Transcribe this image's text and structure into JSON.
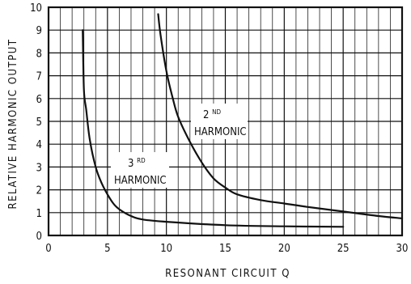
{
  "chart_data": {
    "type": "line",
    "title": "",
    "xlabel": "RESONANT CIRCUIT Q",
    "ylabel": "RELATIVE HARMONIC OUTPUT",
    "xlim": [
      0,
      30
    ],
    "ylim": [
      0,
      10
    ],
    "x_ticks": [
      "0",
      "5",
      "10",
      "15",
      "20",
      "25",
      "30"
    ],
    "y_ticks": [
      "0",
      "1",
      "2",
      "3",
      "4",
      "5",
      "6",
      "7",
      "8",
      "9",
      "10"
    ],
    "grid": true,
    "series": [
      {
        "name": "2ND HARMONIC",
        "label_main": "2",
        "label_sup": "ND",
        "label_sub": "HARMONIC",
        "points": [
          [
            9.3,
            9.7
          ],
          [
            9.5,
            8.8
          ],
          [
            10.0,
            7.2
          ],
          [
            10.5,
            6.1
          ],
          [
            11.0,
            5.2
          ],
          [
            12.0,
            4.1
          ],
          [
            13.0,
            3.2
          ],
          [
            14.0,
            2.5
          ],
          [
            15.0,
            2.1
          ],
          [
            16.0,
            1.8
          ],
          [
            18.0,
            1.55
          ],
          [
            20.0,
            1.4
          ],
          [
            22.0,
            1.25
          ],
          [
            25.0,
            1.05
          ],
          [
            28.0,
            0.85
          ],
          [
            30.0,
            0.75
          ]
        ]
      },
      {
        "name": "3RD HARMONIC",
        "label_main": "3",
        "label_sup": "RD",
        "label_sub": "HARMONIC",
        "points": [
          [
            2.9,
            9.0
          ],
          [
            3.0,
            6.4
          ],
          [
            3.2,
            5.5
          ],
          [
            3.5,
            4.2
          ],
          [
            4.0,
            3.0
          ],
          [
            4.5,
            2.3
          ],
          [
            5.0,
            1.8
          ],
          [
            5.5,
            1.4
          ],
          [
            6.0,
            1.15
          ],
          [
            7.0,
            0.85
          ],
          [
            8.0,
            0.7
          ],
          [
            10.0,
            0.6
          ],
          [
            15.0,
            0.45
          ],
          [
            20.0,
            0.4
          ],
          [
            25.0,
            0.38
          ]
        ]
      }
    ]
  }
}
